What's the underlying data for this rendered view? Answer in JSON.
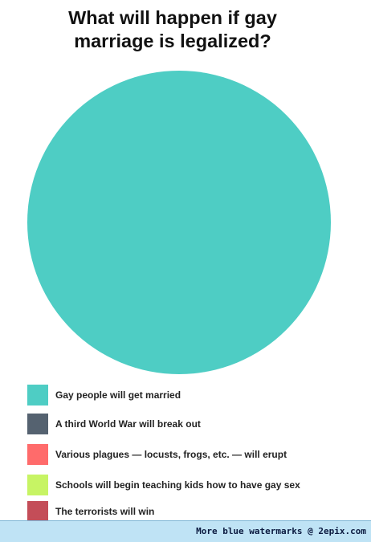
{
  "chart_data": {
    "type": "pie",
    "title_lines": [
      "What will happen if gay",
      "marriage is legalized?"
    ],
    "categories": [
      "Gay people will get married",
      "A third World War will break out",
      "Various plagues — locusts, frogs, etc. — will erupt",
      "Schools will begin teaching kids how to have gay sex",
      "The terrorists will win"
    ],
    "values": [
      100,
      0,
      0,
      0,
      0
    ],
    "colors": [
      "#4ecdc4",
      "#556270",
      "#ff6b6b",
      "#c7f464",
      "#c44d58"
    ],
    "legend_position": "bottom-left"
  },
  "footer": {
    "watermark": "More blue watermarks @ 2epix.com"
  }
}
